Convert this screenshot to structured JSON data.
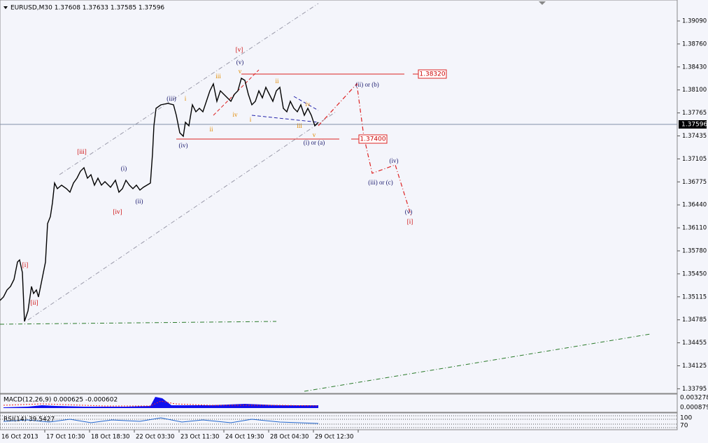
{
  "header": "EURUSD,M30  1.37608 1.37633 1.37585 1.37596",
  "current_price": "1.37596",
  "levels": [
    "1.38320",
    "1.37400"
  ],
  "price_axis": [
    "1.39090",
    "1.38760",
    "1.38430",
    "1.38100",
    "1.37765",
    "1.37435",
    "1.37105",
    "1.36775",
    "1.36440",
    "1.36110",
    "1.35780",
    "1.35450",
    "1.35115",
    "1.34785",
    "1.34455",
    "1.34125",
    "1.33795"
  ],
  "time_axis": [
    "16 Oct 2013",
    "17 Oct 10:30",
    "18 Oct 18:30",
    "22 Oct 03:30",
    "23 Oct 11:30",
    "24 Oct 19:30",
    "28 Oct 04:30",
    "29 Oct 12:30"
  ],
  "indicators": {
    "macd": "MACD(12,26,9) 0.000625 -0.000602",
    "rsi": "RSI(14) 39.5427",
    "macd_axis": [
      "0.003278",
      "0.000879"
    ],
    "rsi_axis": [
      "100",
      "70"
    ]
  },
  "waves": [
    "[v]",
    "(v)",
    "v",
    "iii",
    "i",
    "(iii)",
    "ii",
    "iv",
    "i",
    "ii",
    "iv",
    "iii",
    "v",
    "(iv)",
    "(i) or (a)",
    "(ii) or (b)",
    "(iii) or (c)",
    "(iv)",
    "(v)",
    "[i]",
    "[iii]",
    "(i)",
    "(ii)",
    "[iv]",
    "[i]",
    "[ii]"
  ]
}
